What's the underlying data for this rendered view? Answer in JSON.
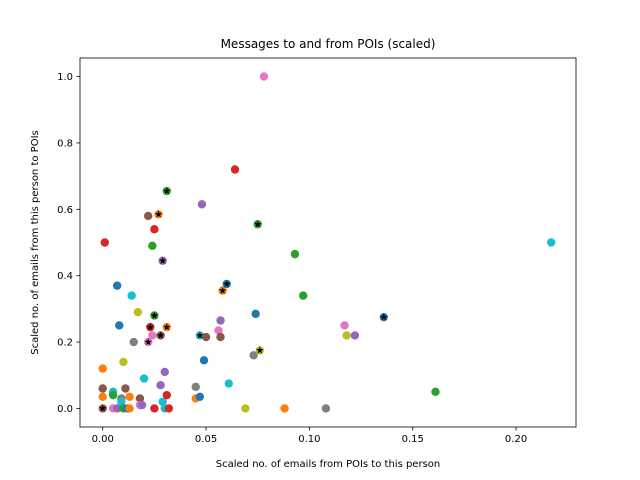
{
  "chart_data": {
    "type": "scatter",
    "title": "Messages to and from POIs (scaled)",
    "xlabel": "Scaled no. of emails from POIs to this person",
    "ylabel": "Scaled no. of emails from this person to POIs",
    "xlim": [
      -0.011,
      0.229
    ],
    "ylim": [
      -0.056,
      1.056
    ],
    "xticks": [
      0.0,
      0.05,
      0.1,
      0.15,
      0.2
    ],
    "xtick_labels": [
      "0.00",
      "0.05",
      "0.10",
      "0.15",
      "0.20"
    ],
    "yticks": [
      0.0,
      0.2,
      0.4,
      0.6,
      0.8,
      1.0
    ],
    "ytick_labels": [
      "0.0",
      "0.2",
      "0.4",
      "0.6",
      "0.8",
      "1.0"
    ],
    "grid": false,
    "legend": "none",
    "poi_marker": "black star overlay",
    "points": [
      {
        "x": 0.0,
        "y": 0.0,
        "color": "#8c564b",
        "poi": true
      },
      {
        "x": 0.0,
        "y": 0.06,
        "color": "#8c564b",
        "poi": false
      },
      {
        "x": 0.0,
        "y": 0.035,
        "color": "#ff7f0e",
        "poi": false
      },
      {
        "x": 0.0,
        "y": 0.12,
        "color": "#ff7f0e",
        "poi": false
      },
      {
        "x": 0.001,
        "y": 0.5,
        "color": "#d62728",
        "poi": false
      },
      {
        "x": 0.005,
        "y": 0.05,
        "color": "#17becf",
        "poi": false
      },
      {
        "x": 0.005,
        "y": 0.04,
        "color": "#2ca02c",
        "poi": false
      },
      {
        "x": 0.005,
        "y": 0.0,
        "color": "#e377c2",
        "poi": false
      },
      {
        "x": 0.007,
        "y": 0.0,
        "color": "#9467bd",
        "poi": false
      },
      {
        "x": 0.007,
        "y": 0.37,
        "color": "#1f77b4",
        "poi": false
      },
      {
        "x": 0.008,
        "y": 0.25,
        "color": "#1f77b4",
        "poi": false
      },
      {
        "x": 0.009,
        "y": 0.03,
        "color": "#7f7f7f",
        "poi": false
      },
      {
        "x": 0.009,
        "y": 0.02,
        "color": "#17becf",
        "poi": false
      },
      {
        "x": 0.01,
        "y": 0.0,
        "color": "#2ca02c",
        "poi": false
      },
      {
        "x": 0.01,
        "y": 0.14,
        "color": "#bcbd22",
        "poi": false
      },
      {
        "x": 0.011,
        "y": 0.06,
        "color": "#8c564b",
        "poi": false
      },
      {
        "x": 0.012,
        "y": 0.0,
        "color": "#1f77b4",
        "poi": false
      },
      {
        "x": 0.013,
        "y": 0.035,
        "color": "#ff7f0e",
        "poi": false
      },
      {
        "x": 0.013,
        "y": 0.0,
        "color": "#ff7f0e",
        "poi": false
      },
      {
        "x": 0.014,
        "y": 0.34,
        "color": "#17becf",
        "poi": false
      },
      {
        "x": 0.015,
        "y": 0.2,
        "color": "#7f7f7f",
        "poi": false
      },
      {
        "x": 0.017,
        "y": 0.29,
        "color": "#bcbd22",
        "poi": false
      },
      {
        "x": 0.018,
        "y": 0.03,
        "color": "#8c564b",
        "poi": false
      },
      {
        "x": 0.018,
        "y": 0.01,
        "color": "#e377c2",
        "poi": false
      },
      {
        "x": 0.019,
        "y": 0.01,
        "color": "#9467bd",
        "poi": false
      },
      {
        "x": 0.02,
        "y": 0.09,
        "color": "#17becf",
        "poi": false
      },
      {
        "x": 0.022,
        "y": 0.58,
        "color": "#8c564b",
        "poi": false
      },
      {
        "x": 0.022,
        "y": 0.2,
        "color": "#e377c2",
        "poi": true
      },
      {
        "x": 0.023,
        "y": 0.245,
        "color": "#d62728",
        "poi": true
      },
      {
        "x": 0.024,
        "y": 0.22,
        "color": "#e377c2",
        "poi": false
      },
      {
        "x": 0.024,
        "y": 0.49,
        "color": "#2ca02c",
        "poi": false
      },
      {
        "x": 0.025,
        "y": 0.54,
        "color": "#d62728",
        "poi": false
      },
      {
        "x": 0.025,
        "y": 0.28,
        "color": "#2ca02c",
        "poi": true
      },
      {
        "x": 0.025,
        "y": 0.0,
        "color": "#d62728",
        "poi": false
      },
      {
        "x": 0.027,
        "y": 0.585,
        "color": "#ff7f0e",
        "poi": true
      },
      {
        "x": 0.028,
        "y": 0.07,
        "color": "#9467bd",
        "poi": false
      },
      {
        "x": 0.028,
        "y": 0.22,
        "color": "#8c564b",
        "poi": true
      },
      {
        "x": 0.029,
        "y": 0.445,
        "color": "#9467bd",
        "poi": true
      },
      {
        "x": 0.029,
        "y": 0.02,
        "color": "#17becf",
        "poi": false
      },
      {
        "x": 0.03,
        "y": 0.11,
        "color": "#9467bd",
        "poi": false
      },
      {
        "x": 0.03,
        "y": 0.0,
        "color": "#17becf",
        "poi": false
      },
      {
        "x": 0.031,
        "y": 0.04,
        "color": "#d62728",
        "poi": false
      },
      {
        "x": 0.031,
        "y": 0.245,
        "color": "#ff7f0e",
        "poi": true
      },
      {
        "x": 0.031,
        "y": 0.655,
        "color": "#2ca02c",
        "poi": true
      },
      {
        "x": 0.032,
        "y": 0.0,
        "color": "#d62728",
        "poi": false
      },
      {
        "x": 0.045,
        "y": 0.065,
        "color": "#7f7f7f",
        "poi": false
      },
      {
        "x": 0.045,
        "y": 0.03,
        "color": "#ff7f0e",
        "poi": false
      },
      {
        "x": 0.047,
        "y": 0.22,
        "color": "#17becf",
        "poi": true
      },
      {
        "x": 0.047,
        "y": 0.035,
        "color": "#1f77b4",
        "poi": false
      },
      {
        "x": 0.048,
        "y": 0.615,
        "color": "#9467bd",
        "poi": false
      },
      {
        "x": 0.049,
        "y": 0.145,
        "color": "#1f77b4",
        "poi": false
      },
      {
        "x": 0.05,
        "y": 0.215,
        "color": "#8c564b",
        "poi": false
      },
      {
        "x": 0.056,
        "y": 0.235,
        "color": "#e377c2",
        "poi": false
      },
      {
        "x": 0.057,
        "y": 0.265,
        "color": "#9467bd",
        "poi": false
      },
      {
        "x": 0.057,
        "y": 0.215,
        "color": "#8c564b",
        "poi": false
      },
      {
        "x": 0.058,
        "y": 0.355,
        "color": "#ff7f0e",
        "poi": true
      },
      {
        "x": 0.06,
        "y": 0.375,
        "color": "#1f77b4",
        "poi": true
      },
      {
        "x": 0.061,
        "y": 0.075,
        "color": "#17becf",
        "poi": false
      },
      {
        "x": 0.064,
        "y": 0.72,
        "color": "#d62728",
        "poi": false
      },
      {
        "x": 0.069,
        "y": 0.0,
        "color": "#bcbd22",
        "poi": false
      },
      {
        "x": 0.073,
        "y": 0.16,
        "color": "#7f7f7f",
        "poi": false
      },
      {
        "x": 0.074,
        "y": 0.285,
        "color": "#1f77b4",
        "poi": false
      },
      {
        "x": 0.075,
        "y": 0.555,
        "color": "#2ca02c",
        "poi": true
      },
      {
        "x": 0.076,
        "y": 0.175,
        "color": "#bcbd22",
        "poi": true
      },
      {
        "x": 0.078,
        "y": 1.0,
        "color": "#e377c2",
        "poi": false
      },
      {
        "x": 0.088,
        "y": 0.0,
        "color": "#ff7f0e",
        "poi": false
      },
      {
        "x": 0.093,
        "y": 0.465,
        "color": "#2ca02c",
        "poi": false
      },
      {
        "x": 0.097,
        "y": 0.34,
        "color": "#2ca02c",
        "poi": false
      },
      {
        "x": 0.108,
        "y": 0.0,
        "color": "#7f7f7f",
        "poi": false
      },
      {
        "x": 0.117,
        "y": 0.25,
        "color": "#e377c2",
        "poi": false
      },
      {
        "x": 0.118,
        "y": 0.22,
        "color": "#bcbd22",
        "poi": false
      },
      {
        "x": 0.122,
        "y": 0.22,
        "color": "#9467bd",
        "poi": false
      },
      {
        "x": 0.136,
        "y": 0.275,
        "color": "#1f77b4",
        "poi": true
      },
      {
        "x": 0.161,
        "y": 0.05,
        "color": "#2ca02c",
        "poi": false
      },
      {
        "x": 0.217,
        "y": 0.5,
        "color": "#17becf",
        "poi": false
      }
    ]
  }
}
